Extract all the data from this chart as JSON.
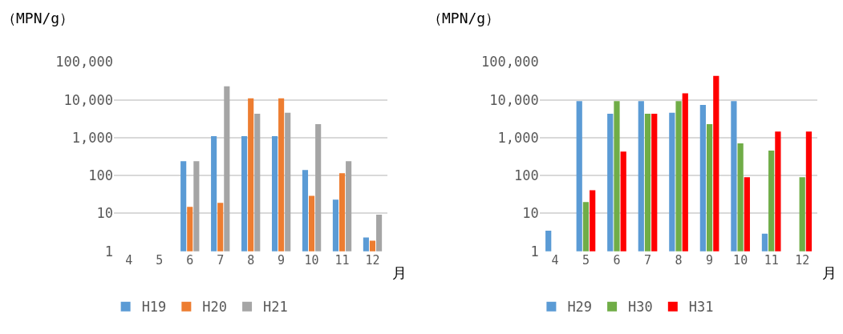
{
  "chart_data": [
    {
      "type": "bar",
      "ylabel": "（MPN/g）",
      "xlabel": "月",
      "categories": [
        "4",
        "5",
        "6",
        "7",
        "8",
        "9",
        "10",
        "11",
        "12"
      ],
      "log": true,
      "ylim": [
        1,
        100000
      ],
      "yticks": [
        {
          "value": 1,
          "label": "1"
        },
        {
          "value": 10,
          "label": "10"
        },
        {
          "value": 100,
          "label": "100"
        },
        {
          "value": 1000,
          "label": "1,000"
        },
        {
          "value": 10000,
          "label": "10,000"
        },
        {
          "value": 100000,
          "label": "100,000"
        }
      ],
      "grid": "y",
      "legend": "bottom left",
      "series": [
        {
          "name": "H19",
          "color": "#5b9bd5",
          "values": [
            null,
            null,
            240,
            1100,
            1100,
            1100,
            140,
            23,
            2.3
          ]
        },
        {
          "name": "H20",
          "color": "#ed7d31",
          "values": [
            null,
            null,
            15,
            19,
            11000,
            11000,
            29,
            115,
            1.9
          ]
        },
        {
          "name": "H21",
          "color": "#a5a5a5",
          "values": [
            null,
            null,
            240,
            23000,
            4300,
            4600,
            2300,
            240,
            9.3
          ]
        }
      ]
    },
    {
      "type": "bar",
      "ylabel": "（MPN/g）",
      "xlabel": "月",
      "categories": [
        "4",
        "5",
        "6",
        "7",
        "8",
        "9",
        "10",
        "11",
        "12"
      ],
      "log": true,
      "ylim": [
        1,
        100000
      ],
      "yticks": [
        {
          "value": 1,
          "label": "1"
        },
        {
          "value": 10,
          "label": "10"
        },
        {
          "value": 100,
          "label": "100"
        },
        {
          "value": 1000,
          "label": "1,000"
        },
        {
          "value": 10000,
          "label": "10,000"
        },
        {
          "value": 100000,
          "label": "100,000"
        }
      ],
      "grid": "y",
      "legend": "bottom left",
      "series": [
        {
          "name": "H29",
          "color": "#5b9bd5",
          "values": [
            3.5,
            9300,
            4300,
            9300,
            4600,
            7400,
            9300,
            2.9,
            null
          ]
        },
        {
          "name": "H30",
          "color": "#70ad47",
          "values": [
            null,
            20,
            9300,
            4300,
            9300,
            2300,
            710,
            460,
            91
          ]
        },
        {
          "name": "H31",
          "color": "#ff0000",
          "values": [
            null,
            41,
            430,
            4300,
            15000,
            43000,
            91,
            1450,
            1450
          ]
        }
      ]
    }
  ]
}
